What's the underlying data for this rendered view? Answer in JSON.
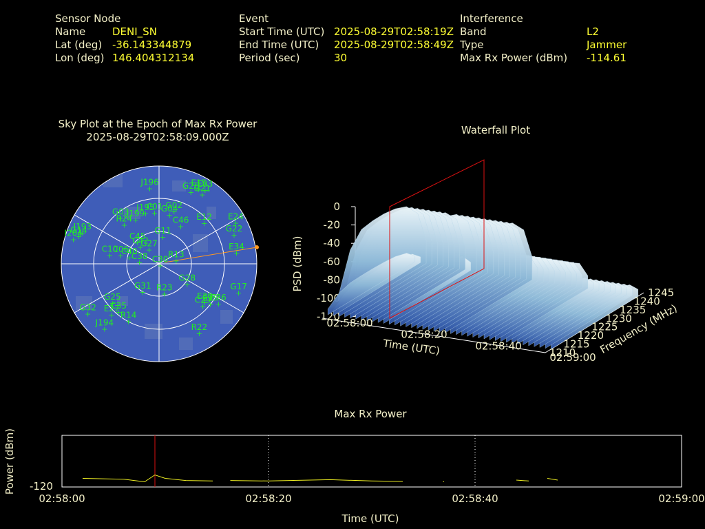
{
  "header": {
    "sensor": {
      "heading": "Sensor Node",
      "rows": [
        {
          "label": "Name",
          "value": "DENI_SN"
        },
        {
          "label": "Lat (deg)",
          "value": "-36.143344879"
        },
        {
          "label": "Lon (deg)",
          "value": "146.404312134"
        }
      ]
    },
    "event": {
      "heading": "Event",
      "rows": [
        {
          "label": "Start Time (UTC)",
          "value": "2025-08-29T02:58:19Z"
        },
        {
          "label": "End Time (UTC)",
          "value": "2025-08-29T02:58:49Z"
        },
        {
          "label": "Period (sec)",
          "value": "30"
        }
      ]
    },
    "interference": {
      "heading": "Interference",
      "rows": [
        {
          "label": "Band",
          "value": "L2"
        },
        {
          "label": "Type",
          "value": "Jammer"
        },
        {
          "label": "Max Rx Power (dBm)",
          "value": "-114.61"
        }
      ]
    }
  },
  "chart_data": [
    {
      "type": "scatter",
      "title": "Sky Plot at the Epoch of Max Rx Power",
      "subtitle": "2025-08-29T02:58:09.000Z",
      "projection": "polar",
      "colors": {
        "disk": "#3f5db8",
        "grid": "#ffffff",
        "sat": "#22ee22",
        "jammer": "#ff9922"
      },
      "satellites": [
        {
          "id": "J196",
          "az": -7,
          "el": 20
        },
        {
          "id": "E15",
          "az": 28,
          "el": 12
        },
        {
          "id": "G26",
          "az": 24,
          "el": 18
        },
        {
          "id": "E03",
          "az": 32,
          "el": 10
        },
        {
          "id": "G21",
          "az": 32,
          "el": 15
        },
        {
          "id": "J195",
          "az": -15,
          "el": 42
        },
        {
          "id": "C01",
          "az": -5,
          "el": 43
        },
        {
          "id": "G04",
          "az": 12,
          "el": 44
        },
        {
          "id": "G02",
          "az": 16,
          "el": 40
        },
        {
          "id": "E12",
          "az": 48,
          "el": 34
        },
        {
          "id": "E24",
          "az": 62,
          "el": 10
        },
        {
          "id": "G03",
          "az": -40,
          "el": 35
        },
        {
          "id": "J199",
          "az": -28,
          "el": 44
        },
        {
          "id": "R24",
          "az": -42,
          "el": 42
        },
        {
          "id": "C46",
          "az": 30,
          "el": 50
        },
        {
          "id": "G14",
          "az": -71,
          "el": 12
        },
        {
          "id": "J193",
          "az": -68,
          "el": 14
        },
        {
          "id": "I204",
          "az": -74,
          "el": 8
        },
        {
          "id": "G22",
          "az": 69,
          "el": 16
        },
        {
          "id": "G11",
          "az": 8,
          "el": 65
        },
        {
          "id": "C45",
          "az": -45,
          "el": 62
        },
        {
          "id": "C42",
          "az": -48,
          "el": 67
        },
        {
          "id": "G27",
          "az": -35,
          "el": 74
        },
        {
          "id": "E34",
          "az": 82,
          "el": 18
        },
        {
          "id": "C10",
          "az": -80,
          "el": 44
        },
        {
          "id": "C06",
          "az": -78,
          "el": 54
        },
        {
          "id": "C40",
          "az": -78,
          "el": 62
        },
        {
          "id": "C38",
          "az": -86,
          "el": 72
        },
        {
          "id": "R13",
          "az": 80,
          "el": 74
        },
        {
          "id": "C30",
          "az": 150,
          "el": 88
        },
        {
          "id": "R23",
          "az": 170,
          "el": 62
        },
        {
          "id": "G28",
          "az": 126,
          "el": 58
        },
        {
          "id": "E30",
          "az": 130,
          "el": 35
        },
        {
          "id": "E19",
          "az": 128,
          "el": 30
        },
        {
          "id": "C29",
          "az": 134,
          "el": 34
        },
        {
          "id": "E36",
          "az": 124,
          "el": 24
        },
        {
          "id": "G17",
          "az": 110,
          "el": 12
        },
        {
          "id": "G31",
          "az": -150,
          "el": 60
        },
        {
          "id": "G25",
          "az": -130,
          "el": 34
        },
        {
          "id": "C35",
          "az": -140,
          "el": 32
        },
        {
          "id": "R14",
          "az": -152,
          "el": 30
        },
        {
          "id": "E27",
          "az": -137,
          "el": 26
        },
        {
          "id": "G32",
          "az": -125,
          "el": 10
        },
        {
          "id": "J194",
          "az": -140,
          "el": 12
        },
        {
          "id": "R22",
          "az": 150,
          "el": 16
        }
      ],
      "jammer": {
        "az": 90,
        "el": 0
      }
    },
    {
      "type": "area",
      "title": "Waterfall Plot",
      "xlabel": "Time (UTC)",
      "ylabel": "Frequency (MHz)",
      "zlabel": "PSD (dBm)",
      "x_ticks": [
        "02:58:00",
        "02:58:20",
        "02:58:40",
        "02:59:00"
      ],
      "y_ticks": [
        "1210",
        "1215",
        "1220",
        "1225",
        "1230",
        "1235",
        "1240",
        "1245"
      ],
      "z_ticks": [
        "0",
        "-20",
        "-40",
        "-60",
        "-80",
        "-100",
        "-120"
      ],
      "zlim": [
        -120,
        0
      ],
      "marker_time": "02:58:09",
      "profile": {
        "freq": [
          1212,
          1216,
          1220,
          1224,
          1228,
          1232,
          1236,
          1240,
          1243
        ],
        "psd": [
          -95,
          -55,
          -40,
          -38,
          -38,
          -40,
          -45,
          -60,
          -95
        ]
      },
      "colors": {
        "low": "#2e55a8",
        "high": "#eaf4f8",
        "marker": "#dd1111"
      }
    },
    {
      "type": "line",
      "title": "Max Rx Power",
      "xlabel": "Time (UTC)",
      "ylabel": "Power (dBm)",
      "y_ticks": [
        "-120"
      ],
      "x_ticks": [
        "02:58:00",
        "02:58:20",
        "02:58:40",
        "02:59:00"
      ],
      "xlim_sec": [
        0,
        60
      ],
      "ylim": [
        -120,
        -108
      ],
      "marker_sec": 9,
      "color": "#eeee22",
      "segments": [
        [
          [
            2,
            -118.0
          ],
          [
            6,
            -118.2
          ],
          [
            8,
            -118.8
          ],
          [
            9,
            -117.2
          ],
          [
            10,
            -118.0
          ],
          [
            12,
            -118.5
          ],
          [
            14.6,
            -118.6
          ]
        ],
        [
          [
            16.3,
            -118.5
          ],
          [
            20,
            -118.6
          ],
          [
            26,
            -118.3
          ],
          [
            30,
            -118.6
          ],
          [
            33,
            -118.7
          ]
        ],
        [
          [
            36.9,
            -118.8
          ],
          [
            37,
            -118.8
          ]
        ],
        [
          [
            44.0,
            -118.4
          ],
          [
            45.2,
            -118.6
          ]
        ],
        [
          [
            47.0,
            -118.0
          ],
          [
            48.0,
            -118.4
          ]
        ]
      ]
    }
  ]
}
